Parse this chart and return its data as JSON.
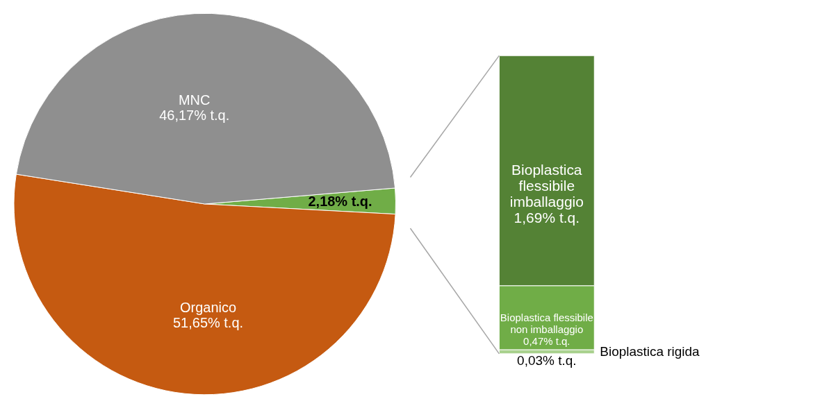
{
  "chart_data": [
    {
      "type": "pie",
      "categories": [
        null,
        "Organico",
        "MNC"
      ],
      "values": [
        2.18,
        51.65,
        46.17
      ],
      "colors": [
        "#70ad47",
        "#c55a11",
        "#8f8f8f"
      ],
      "value_labels": [
        "2,18% t.q.",
        "51,65% t.q.",
        "46,17% t.q."
      ]
    },
    {
      "type": "bar",
      "stacked": true,
      "categories": [
        null
      ],
      "series": [
        {
          "name": "Bioplastica rigida",
          "color": "#a9d18e",
          "values": [
            0.03
          ],
          "value_labels": [
            "0,03% t.q."
          ]
        },
        {
          "name": "Bioplastica flessibile non imballaggio",
          "color": "#70ad47",
          "values": [
            0.47
          ],
          "value_labels": [
            "0,47% t.q."
          ]
        },
        {
          "name": "Bioplastica flessibile imballaggio",
          "color": "#548235",
          "values": [
            1.69
          ],
          "value_labels": [
            "1,69% t.q."
          ]
        }
      ]
    }
  ]
}
